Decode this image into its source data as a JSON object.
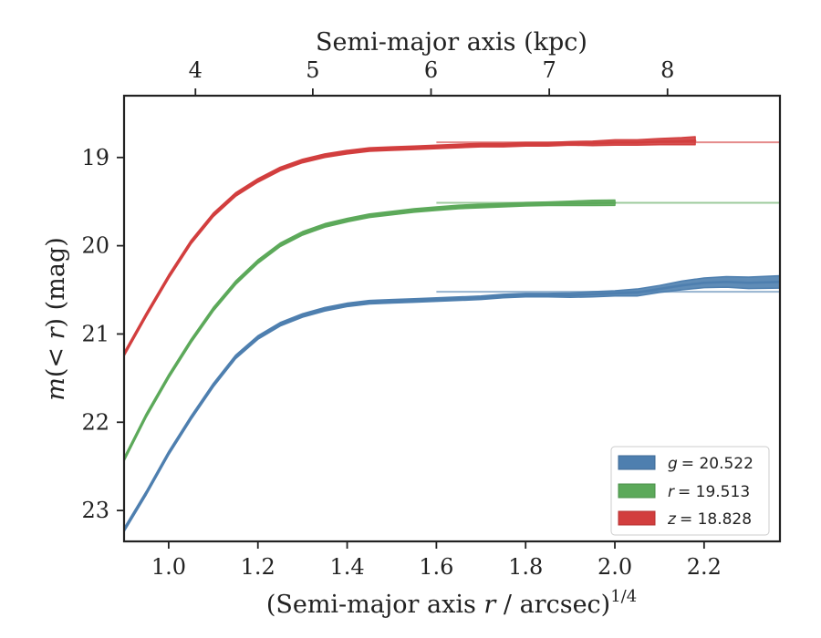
{
  "chart_data": {
    "type": "line",
    "xlabel_prefix": "(Semi-major axis ",
    "xlabel_var": "r",
    "xlabel_suffix": " / arcsec)",
    "xlabel_exp": "1/4",
    "top_xlabel": "Semi-major axis (kpc)",
    "ylabel_prefix": "m",
    "ylabel_mid": "(< ",
    "ylabel_var": "r",
    "ylabel_suffix": ") (mag)",
    "xlim": [
      0.9,
      2.37
    ],
    "ylim": [
      23.35,
      18.3
    ],
    "y_inverted": true,
    "x_ticks": [
      1.0,
      1.2,
      1.4,
      1.6,
      1.8,
      2.0,
      2.2
    ],
    "x_tick_labels": [
      "1.0",
      "1.2",
      "1.4",
      "1.6",
      "1.8",
      "2.0",
      "2.2"
    ],
    "y_ticks": [
      19,
      20,
      21,
      22,
      23
    ],
    "y_tick_labels": [
      "19",
      "20",
      "21",
      "22",
      "23"
    ],
    "top_ticks": [
      1.06,
      1.323,
      1.588,
      1.853,
      2.118
    ],
    "top_tick_labels": [
      "4",
      "5",
      "6",
      "7",
      "8"
    ],
    "legend_position": "lower-right",
    "grid": false,
    "series": [
      {
        "name": "g = 20.522",
        "label_var": "g",
        "label_value": "= 20.522",
        "color": "#4e7faf",
        "asymptote": 20.522,
        "x": [
          0.9,
          0.95,
          1.0,
          1.05,
          1.1,
          1.15,
          1.2,
          1.25,
          1.3,
          1.35,
          1.4,
          1.45,
          1.5,
          1.55,
          1.6,
          1.65,
          1.7,
          1.75,
          1.8,
          1.85,
          1.9,
          1.95,
          2.0,
          2.05,
          2.1,
          2.15,
          2.2,
          2.25,
          2.3,
          2.37
        ],
        "y": [
          23.22,
          22.8,
          22.35,
          21.95,
          21.58,
          21.26,
          21.04,
          20.89,
          20.79,
          20.72,
          20.67,
          20.64,
          20.63,
          20.62,
          20.61,
          20.6,
          20.59,
          20.57,
          20.56,
          20.56,
          20.56,
          20.55,
          20.54,
          20.53,
          20.49,
          20.45,
          20.42,
          20.41,
          20.42,
          20.41
        ],
        "band": [
          0.02,
          0.02,
          0.02,
          0.02,
          0.02,
          0.02,
          0.02,
          0.02,
          0.02,
          0.02,
          0.02,
          0.02,
          0.02,
          0.02,
          0.02,
          0.02,
          0.02,
          0.02,
          0.02,
          0.02,
          0.025,
          0.03,
          0.03,
          0.04,
          0.04,
          0.05,
          0.055,
          0.06,
          0.065,
          0.07
        ]
      },
      {
        "name": "r = 19.513",
        "label_var": "r",
        "label_value": "= 19.513",
        "color": "#5ca95a",
        "asymptote": 19.513,
        "x": [
          0.9,
          0.95,
          1.0,
          1.05,
          1.1,
          1.15,
          1.2,
          1.25,
          1.3,
          1.35,
          1.4,
          1.45,
          1.5,
          1.55,
          1.6,
          1.65,
          1.7,
          1.75,
          1.8,
          1.85,
          1.9,
          1.95,
          2.0
        ],
        "y": [
          22.42,
          21.92,
          21.48,
          21.08,
          20.72,
          20.42,
          20.18,
          19.99,
          19.86,
          19.77,
          19.71,
          19.66,
          19.63,
          19.6,
          19.58,
          19.56,
          19.55,
          19.54,
          19.53,
          19.525,
          19.52,
          19.515,
          19.513
        ],
        "band": [
          0.02,
          0.02,
          0.02,
          0.02,
          0.02,
          0.02,
          0.02,
          0.02,
          0.02,
          0.02,
          0.02,
          0.02,
          0.02,
          0.02,
          0.02,
          0.02,
          0.02,
          0.02,
          0.02,
          0.02,
          0.025,
          0.03,
          0.03
        ]
      },
      {
        "name": "z = 18.828",
        "label_var": "z",
        "label_value": "= 18.828",
        "color": "#d23e3e",
        "asymptote": 18.828,
        "x": [
          0.9,
          0.95,
          1.0,
          1.05,
          1.1,
          1.15,
          1.2,
          1.25,
          1.3,
          1.35,
          1.4,
          1.45,
          1.5,
          1.55,
          1.6,
          1.65,
          1.7,
          1.75,
          1.8,
          1.85,
          1.9,
          1.95,
          2.0,
          2.05,
          2.1,
          2.15,
          2.18
        ],
        "y": [
          21.23,
          20.78,
          20.35,
          19.96,
          19.65,
          19.42,
          19.26,
          19.13,
          19.04,
          18.98,
          18.94,
          18.91,
          18.9,
          18.89,
          18.88,
          18.87,
          18.86,
          18.86,
          18.85,
          18.85,
          18.84,
          18.84,
          18.83,
          18.83,
          18.82,
          18.815,
          18.81
        ],
        "band": [
          0.02,
          0.02,
          0.02,
          0.02,
          0.02,
          0.02,
          0.02,
          0.02,
          0.02,
          0.02,
          0.02,
          0.02,
          0.02,
          0.02,
          0.02,
          0.02,
          0.02,
          0.02,
          0.02,
          0.02,
          0.02,
          0.025,
          0.03,
          0.03,
          0.035,
          0.04,
          0.045
        ]
      }
    ]
  }
}
